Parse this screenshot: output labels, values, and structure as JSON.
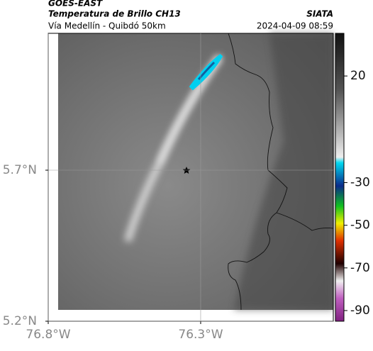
{
  "chart_data": {
    "type": "map",
    "title": "GOES-EAST",
    "subtitle": "Temperatura de Brillo CH13",
    "source": "SIATA",
    "route": "Vía Medellín - Quibdó 50km",
    "timestamp": "2024-04-09 08:59",
    "xlim": [
      -76.8,
      -75.865
    ],
    "ylim": [
      5.2,
      6.153
    ],
    "xticks": [
      {
        "value": -76.8,
        "label": "76.8°W"
      },
      {
        "value": -76.3,
        "label": "76.3°W"
      }
    ],
    "yticks": [
      {
        "value": 5.2,
        "label": "5.2°N"
      },
      {
        "value": 5.7,
        "label": "5.7°N"
      }
    ],
    "grid": true,
    "colorbar_lim": [
      -95,
      40
    ],
    "colorbar_ticks": [
      20,
      -30,
      -50,
      -70,
      -90
    ]
  }
}
